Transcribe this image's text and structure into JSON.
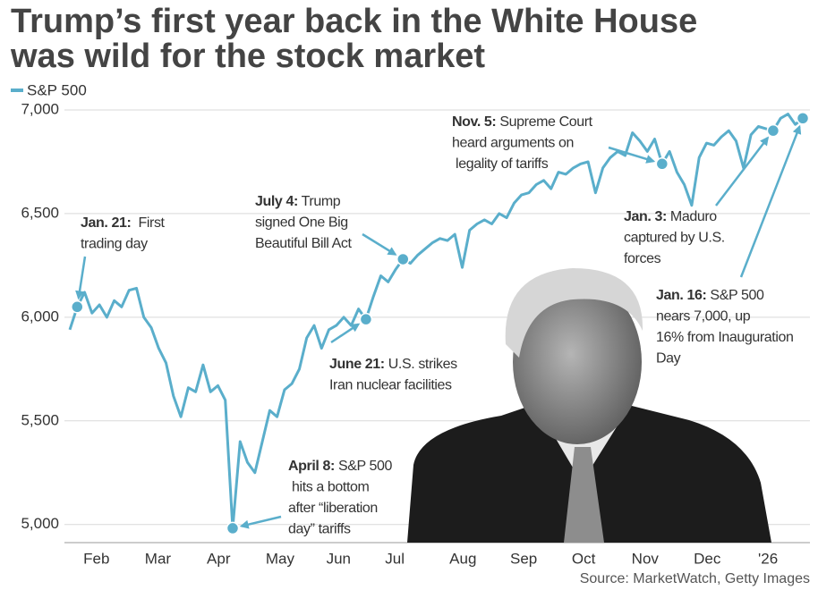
{
  "chart_data": {
    "type": "line",
    "title": [
      "Trump’s first year back in the White House",
      "was wild for the stock market"
    ],
    "series": [
      {
        "name": "S&P 500",
        "color": "#5aaecb",
        "values": [
          5940,
          6050,
          6120,
          6020,
          6060,
          6000,
          6080,
          6050,
          6130,
          6140,
          6000,
          5950,
          5850,
          5780,
          5620,
          5520,
          5660,
          5640,
          5770,
          5640,
          5670,
          5600,
          4982,
          5400,
          5300,
          5250,
          5400,
          5550,
          5520,
          5650,
          5680,
          5750,
          5900,
          5960,
          5850,
          5940,
          5960,
          6000,
          5960,
          6040,
          5990,
          6100,
          6200,
          6170,
          6230,
          6280,
          6260,
          6300,
          6330,
          6360,
          6380,
          6370,
          6400,
          6240,
          6420,
          6450,
          6470,
          6450,
          6500,
          6480,
          6550,
          6590,
          6600,
          6640,
          6660,
          6620,
          6700,
          6690,
          6720,
          6740,
          6750,
          6600,
          6720,
          6770,
          6800,
          6780,
          6890,
          6850,
          6800,
          6860,
          6740,
          6800,
          6700,
          6640,
          6540,
          6770,
          6840,
          6830,
          6870,
          6900,
          6850,
          6720,
          6880,
          6920,
          6910,
          6900,
          6960,
          6980,
          6930,
          6960
        ]
      }
    ],
    "xticks": [
      {
        "value": 3.6,
        "label": "Feb"
      },
      {
        "value": 11.9,
        "label": "Mar"
      },
      {
        "value": 20.1,
        "label": "Apr"
      },
      {
        "value": 28.4,
        "label": "May"
      },
      {
        "value": 36.3,
        "label": "Jun"
      },
      {
        "value": 43.9,
        "label": "Jul"
      },
      {
        "value": 53.1,
        "label": "Aug"
      },
      {
        "value": 61.3,
        "label": "Sep"
      },
      {
        "value": 69.4,
        "label": "Oct"
      },
      {
        "value": 77.7,
        "label": "Nov"
      },
      {
        "value": 86.1,
        "label": "Dec"
      },
      {
        "value": 94.3,
        "label": "'26"
      }
    ],
    "ylim": [
      4960,
      7000
    ],
    "yticks": [
      {
        "value": 5000,
        "label": "5,000"
      },
      {
        "value": 5500,
        "label": "5,500"
      },
      {
        "value": 6000,
        "label": "6,000"
      },
      {
        "value": 6500,
        "label": "6,500"
      },
      {
        "value": 7000,
        "label": "7,000"
      }
    ],
    "grid": true,
    "annotations": [
      {
        "bold": "Jan. 21:",
        "lines": [
          "  First",
          "trading day"
        ]
      },
      {
        "bold": "July 4:",
        "lines": [
          " Trump",
          "signed One Big",
          "Beautiful Bill Act"
        ]
      },
      {
        "bold": "Nov. 5:",
        "lines": [
          " Supreme Court",
          "heard arguments on",
          " legality of tariffs"
        ]
      },
      {
        "bold": "Jan. 3:",
        "lines": [
          " Maduro",
          "captured by U.S.",
          "forces"
        ]
      },
      {
        "bold": "Jan. 16:",
        "lines": [
          " S&P 500",
          "nears 7,000, up",
          "16% from Inauguration",
          "Day"
        ]
      },
      {
        "bold": "June 21:",
        "lines": [
          " U.S. strikes",
          "Iran nuclear facilities"
        ]
      },
      {
        "bold": "April 8:",
        "lines": [
          " S&P 500",
          " hits a bottom",
          "after “liberation",
          "day” tariffs"
        ]
      }
    ],
    "source": "Source: MarketWatch, Getty Images"
  }
}
